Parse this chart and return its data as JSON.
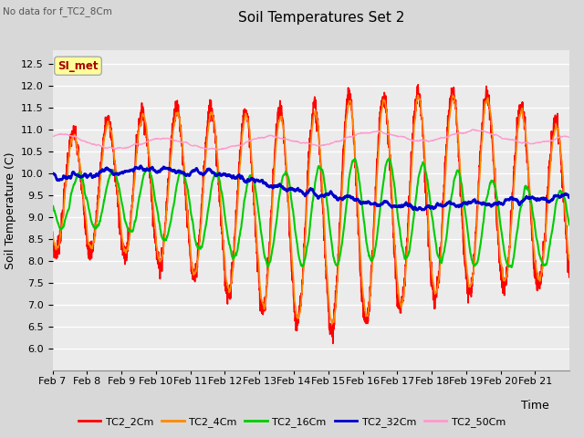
{
  "title": "Soil Temperatures Set 2",
  "xlabel": "Time",
  "ylabel": "Soil Temperature (C)",
  "no_data_label": "No data for f_TC2_8Cm",
  "annotation": "SI_met",
  "ylim": [
    5.5,
    12.8
  ],
  "yticks": [
    6.0,
    6.5,
    7.0,
    7.5,
    8.0,
    8.5,
    9.0,
    9.5,
    10.0,
    10.5,
    11.0,
    11.5,
    12.0,
    12.5
  ],
  "line_colors": [
    "#ff0000",
    "#ff8800",
    "#00cc00",
    "#0000cc",
    "#ff99cc"
  ],
  "line_labels": [
    "TC2_2Cm",
    "TC2_4Cm",
    "TC2_16Cm",
    "TC2_32Cm",
    "TC2_50Cm"
  ],
  "line_widths": [
    1.2,
    1.2,
    1.5,
    2.0,
    1.0
  ],
  "bg_color": "#d8d8d8",
  "plot_bg_color": "#ebebeb",
  "grid_color": "#ffffff",
  "title_fontsize": 11,
  "label_fontsize": 9,
  "tick_fontsize": 8
}
